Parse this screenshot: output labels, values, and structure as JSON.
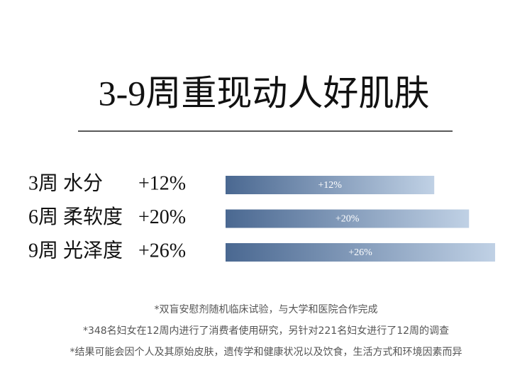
{
  "chart_data": {
    "type": "bar",
    "orientation": "horizontal",
    "title": "3-9周重现动人好肌肤",
    "categories": [
      "3周 水分",
      "6周 柔软度",
      "9周 光泽度"
    ],
    "values": [
      12,
      20,
      26
    ],
    "value_labels": [
      "+12%",
      "+20%",
      "+26%"
    ],
    "xlim": [
      -36,
      26
    ],
    "gradient": [
      "#4a6891",
      "#c0d1e5"
    ],
    "notes": [
      "*双盲安慰剂随机临床试验，与大学和医院合作完成",
      "*348名妇女在12周内进行了消费者使用研究，另针对221名妇女进行了12周的调查",
      "*结果可能会因个人及其原始皮肤，遗传学和健康状况以及饮食，生活方式和环境因素而异"
    ]
  }
}
